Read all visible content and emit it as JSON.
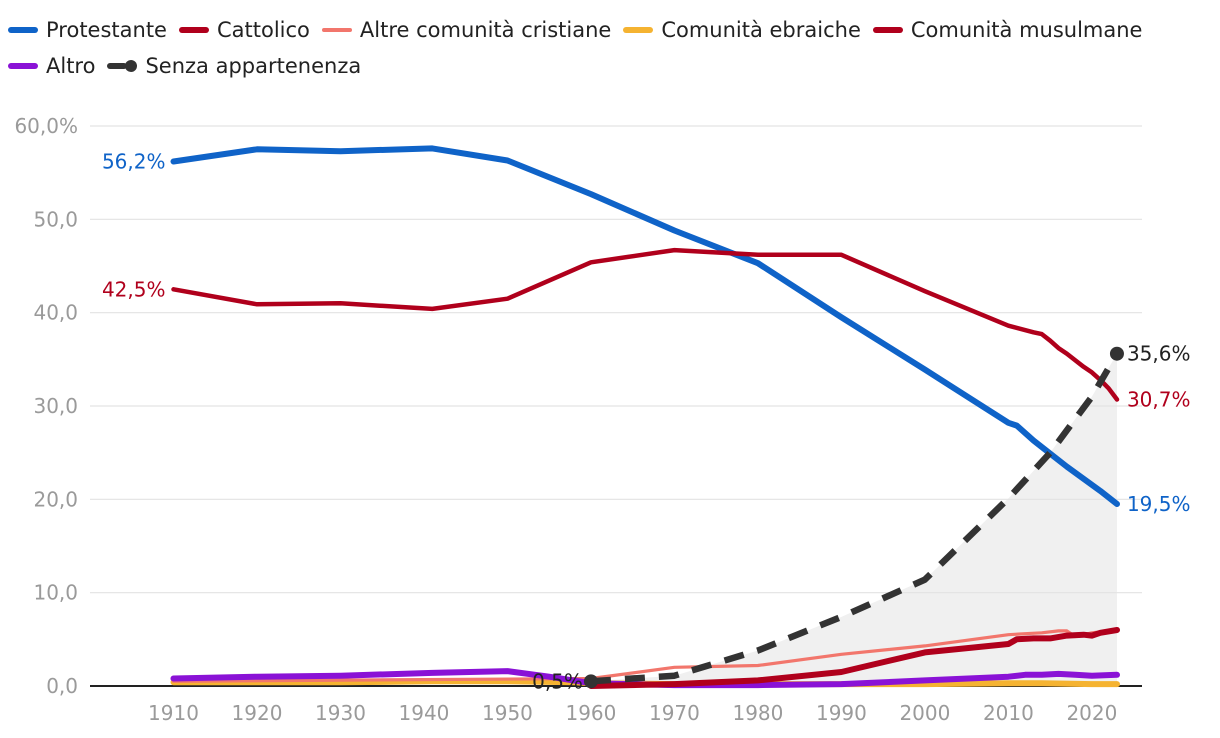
{
  "chart_data": {
    "type": "line",
    "title": "",
    "xlabel": "",
    "ylabel": "",
    "ylim": [
      0,
      60
    ],
    "xlim": [
      1900,
      2026
    ],
    "yticks": [
      0,
      10,
      20,
      30,
      40,
      50,
      60
    ],
    "ytick_labels": [
      "0,0",
      "10,0",
      "20,0",
      "30,0",
      "40,0",
      "50,0",
      "60,0%"
    ],
    "xticks": [
      1910,
      1920,
      1930,
      1940,
      1950,
      1960,
      1970,
      1980,
      1990,
      2000,
      2010,
      2020
    ],
    "xtick_labels": [
      "1910",
      "1920",
      "1930",
      "1940",
      "1950",
      "1960",
      "1970",
      "1980",
      "1990",
      "2000",
      "2010",
      "2020"
    ],
    "grid": true,
    "legend_position": "top",
    "series": [
      {
        "name": "Protestante",
        "color": "#0f63c8",
        "width": "thick",
        "x": [
          1910,
          1920,
          1930,
          1941,
          1950,
          1960,
          1970,
          1980,
          1990,
          2000,
          2010,
          2011,
          2013,
          2015,
          2017,
          2019,
          2021,
          2023
        ],
        "y": [
          56.2,
          57.5,
          57.3,
          57.6,
          56.3,
          52.7,
          48.8,
          45.3,
          39.5,
          33.9,
          28.2,
          27.9,
          26.3,
          24.9,
          23.5,
          22.2,
          20.9,
          19.5
        ]
      },
      {
        "name": "Cattolico",
        "color": "#b0001c",
        "width": "medium",
        "x": [
          1910,
          1920,
          1930,
          1941,
          1950,
          1960,
          1970,
          1980,
          1990,
          2000,
          2010,
          2013,
          2014,
          2015,
          2016,
          2017,
          2018,
          2019,
          2020,
          2021,
          2022,
          2023
        ],
        "y": [
          42.5,
          40.9,
          41.0,
          40.4,
          41.5,
          45.4,
          46.7,
          46.2,
          46.2,
          42.3,
          38.6,
          37.9,
          37.7,
          37.0,
          36.2,
          35.6,
          34.9,
          34.2,
          33.6,
          32.8,
          31.9,
          30.7
        ]
      },
      {
        "name": "Altre comunità cristiane",
        "color": "#f2766c",
        "width": "thin",
        "x": [
          1910,
          1960,
          1970,
          1980,
          1990,
          2000,
          2010,
          2012,
          2014,
          2016,
          2017,
          2018,
          2020,
          2023
        ],
        "y": [
          0.5,
          0.8,
          2.0,
          2.2,
          3.4,
          4.3,
          5.5,
          5.6,
          5.7,
          5.9,
          5.9,
          5.3,
          5.7,
          6.0
        ]
      },
      {
        "name": "Comunità ebraiche",
        "color": "#f5b331",
        "width": "thick",
        "x": [
          1910,
          1920,
          1930,
          1941,
          1950,
          1958,
          1960,
          1970,
          1980,
          1990,
          2000,
          2010,
          2014,
          2020,
          2023
        ],
        "y": [
          0.4,
          0.4,
          0.4,
          0.5,
          0.5,
          0.4,
          0.3,
          0.2,
          0.2,
          0.2,
          0.2,
          0.3,
          0.3,
          0.2,
          0.2
        ]
      },
      {
        "name": "Comunità musulmane",
        "color": "#b0001c",
        "width": "thick",
        "x": [
          1960,
          1970,
          1980,
          1990,
          2000,
          2010,
          2011,
          2013,
          2015,
          2017,
          2019,
          2020,
          2021,
          2023
        ],
        "y": [
          0.0,
          0.2,
          0.6,
          1.5,
          3.6,
          4.5,
          5.0,
          5.1,
          5.1,
          5.4,
          5.5,
          5.4,
          5.7,
          6.0
        ]
      },
      {
        "name": "Altro",
        "color": "#8a12d6",
        "width": "thick",
        "x": [
          1910,
          1920,
          1930,
          1941,
          1950,
          1955,
          1960,
          1970,
          1980,
          1990,
          2000,
          2010,
          2012,
          2014,
          2016,
          2018,
          2020,
          2023
        ],
        "y": [
          0.8,
          1.0,
          1.1,
          1.4,
          1.6,
          1.0,
          0.3,
          0.1,
          0.1,
          0.2,
          0.6,
          1.0,
          1.2,
          1.2,
          1.3,
          1.2,
          1.1,
          1.2
        ]
      },
      {
        "name": "Senza appartenenza",
        "color": "#333333",
        "width": "dashed",
        "x": [
          1960,
          1970,
          1980,
          1990,
          2000,
          2010,
          2015,
          2020,
          2023
        ],
        "y": [
          0.5,
          1.1,
          3.8,
          7.4,
          11.4,
          20.1,
          25.0,
          31.0,
          35.6
        ]
      }
    ],
    "annotations": [
      {
        "text": "56,2%",
        "series": "Protestante",
        "x": 1910,
        "y": 56.2,
        "side": "left",
        "color": "#0f63c8"
      },
      {
        "text": "42,5%",
        "series": "Cattolico",
        "x": 1910,
        "y": 42.5,
        "side": "left",
        "color": "#b0001c"
      },
      {
        "text": "0,5%",
        "series": "Senza appartenenza",
        "x": 1960,
        "y": 0.5,
        "side": "left",
        "color": "#222222"
      },
      {
        "text": "35,6%",
        "series": "Senza appartenenza",
        "x": 2023,
        "y": 35.6,
        "side": "right",
        "color": "#222222"
      },
      {
        "text": "30,7%",
        "series": "Cattolico",
        "x": 2023,
        "y": 30.7,
        "side": "right",
        "color": "#b0001c"
      },
      {
        "text": "19,5%",
        "series": "Protestante",
        "x": 2023,
        "y": 19.5,
        "side": "right",
        "color": "#0f63c8"
      }
    ],
    "shaded_area": {
      "series": "Senza appartenenza",
      "color": "#f0f0f0"
    }
  }
}
